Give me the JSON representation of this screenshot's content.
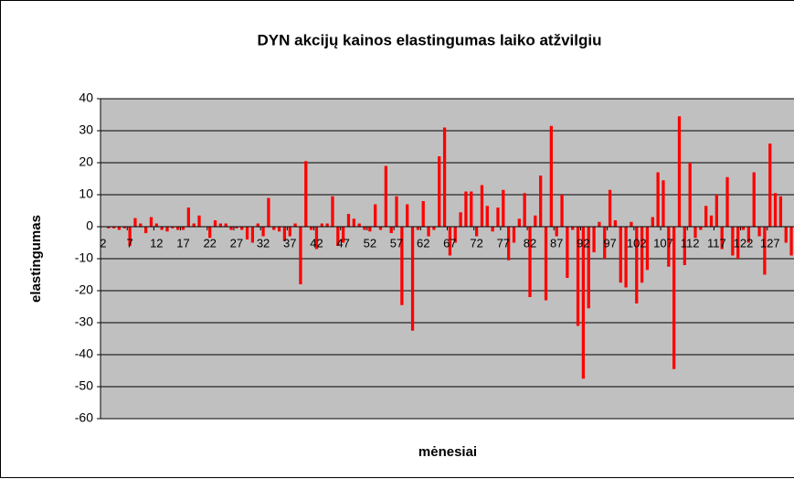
{
  "chart_data": {
    "type": "bar",
    "title": "DYN akcijų kainos elastingumas laiko atžvilgiu",
    "x_label": "mėnesiai",
    "y_label": "elastingumas",
    "categories": [
      2,
      null,
      null,
      null,
      null,
      7,
      null,
      null,
      null,
      null,
      12,
      null,
      null,
      null,
      null,
      17,
      null,
      null,
      null,
      null,
      22,
      null,
      null,
      null,
      null,
      27,
      null,
      null,
      null,
      null,
      32,
      null,
      null,
      null,
      null,
      37,
      null,
      null,
      null,
      null,
      42,
      null,
      null,
      null,
      null,
      47,
      null,
      null,
      null,
      null,
      52,
      null,
      null,
      null,
      null,
      57,
      null,
      null,
      null,
      null,
      62,
      null,
      null,
      null,
      null,
      67,
      null,
      null,
      null,
      null,
      72,
      null,
      null,
      null,
      null,
      77,
      null,
      null,
      null,
      null,
      82,
      null,
      null,
      null,
      null,
      87,
      null,
      null,
      null,
      null,
      92,
      null,
      null,
      null,
      null,
      97,
      null,
      null,
      null,
      null,
      102,
      null,
      null,
      null,
      null,
      107,
      null,
      null,
      null,
      null,
      112,
      null,
      null,
      null,
      null,
      117,
      null,
      null,
      null,
      null,
      122,
      null,
      null,
      null,
      null,
      127,
      null,
      null,
      null,
      null
    ],
    "values": [
      0,
      -0.5,
      -0.5,
      -1,
      -0.5,
      -6,
      2.7,
      1,
      -2,
      3,
      1,
      -1,
      -1.5,
      -0.5,
      -1,
      -1,
      6,
      1,
      3.5,
      0,
      -3.5,
      2,
      1,
      1,
      -1,
      -0.5,
      -1,
      -4,
      -5,
      1,
      -3,
      9,
      -1,
      -1.5,
      -4.5,
      -3,
      1,
      -18,
      20.5,
      -1,
      -7,
      1,
      1,
      9.5,
      -6,
      -5,
      4,
      2.5,
      1,
      -1,
      -1.5,
      7,
      -1,
      19,
      -2,
      9.5,
      -24.5,
      7,
      -32.5,
      -1,
      8,
      -3,
      -1,
      22,
      31,
      -9,
      -5,
      4.5,
      11,
      11,
      -3,
      13,
      6.5,
      -1.5,
      6,
      11.5,
      -10.5,
      -5,
      2.5,
      10.5,
      -22,
      3.5,
      16,
      -23,
      31.5,
      -3,
      10,
      -16,
      -1,
      -31,
      -47.5,
      -25.5,
      -8,
      1.5,
      -10,
      11.5,
      2,
      -17.5,
      -19,
      1.5,
      -24,
      -17.5,
      -13.5,
      3,
      17,
      14.5,
      -12.5,
      -44.5,
      34.5,
      -12,
      20,
      -3.5,
      -1,
      6.5,
      3.5,
      10,
      -7,
      15.5,
      -9,
      -10,
      -1,
      -5,
      17,
      -3,
      -15,
      26,
      10.5,
      9.5,
      -5,
      -9
    ],
    "color": "#ff0000",
    "ylim": [
      -60,
      40
    ],
    "yticks": [
      -60,
      -50,
      -40,
      -30,
      -20,
      -10,
      0,
      10,
      20,
      30,
      40
    ],
    "grid": true
  }
}
